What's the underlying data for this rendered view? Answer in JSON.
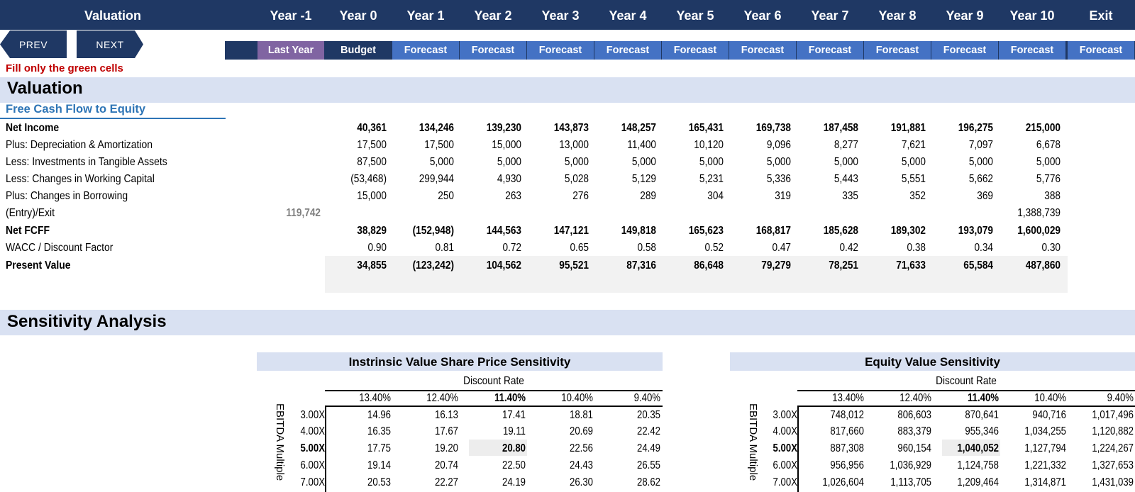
{
  "header": {
    "title": "Valuation",
    "years": [
      "Year -1",
      "Year 0",
      "Year 1",
      "Year 2",
      "Year 3",
      "Year 4",
      "Year 5",
      "Year 6",
      "Year 7",
      "Year 8",
      "Year 9",
      "Year 10",
      "Exit"
    ],
    "types": [
      "Last Year",
      "Budget",
      "Forecast",
      "Forecast",
      "Forecast",
      "Forecast",
      "Forecast",
      "Forecast",
      "Forecast",
      "Forecast",
      "Forecast",
      "Forecast",
      "Forecast"
    ]
  },
  "nav": {
    "prev": "PREV",
    "next": "NEXT"
  },
  "note": "Fill only the green cells",
  "valuation": {
    "section_title": "Valuation",
    "subsection": "Free Cash Flow to Equity",
    "rows": [
      {
        "label": "Net Income",
        "bold": true,
        "values": [
          "",
          "40,361",
          "134,246",
          "139,230",
          "143,873",
          "148,257",
          "165,431",
          "169,738",
          "187,458",
          "191,881",
          "196,275",
          "215,000"
        ]
      },
      {
        "label": "Plus: Depreciation & Amortization",
        "bold": false,
        "values": [
          "",
          "17,500",
          "17,500",
          "15,000",
          "13,000",
          "11,400",
          "10,120",
          "9,096",
          "8,277",
          "7,621",
          "7,097",
          "6,678"
        ]
      },
      {
        "label": "Less: Investments in Tangible Assets",
        "bold": false,
        "values": [
          "",
          "87,500",
          "5,000",
          "5,000",
          "5,000",
          "5,000",
          "5,000",
          "5,000",
          "5,000",
          "5,000",
          "5,000",
          "5,000"
        ]
      },
      {
        "label": "Less: Changes in Working Capital",
        "bold": false,
        "values": [
          "",
          "(53,468)",
          "299,944",
          "4,930",
          "5,028",
          "5,129",
          "5,231",
          "5,336",
          "5,443",
          "5,551",
          "5,662",
          "5,776"
        ]
      },
      {
        "label": "Plus: Changes in Borrowing",
        "bold": false,
        "values": [
          "",
          "15,000",
          "250",
          "263",
          "276",
          "289",
          "304",
          "319",
          "335",
          "352",
          "369",
          "388"
        ]
      },
      {
        "label": "(Entry)/Exit",
        "bold": false,
        "values": [
          "119,742",
          "",
          "",
          "",
          "",
          "",
          "",
          "",
          "",
          "",
          "",
          "1,388,739"
        ]
      },
      {
        "label": "Net FCFF",
        "bold": true,
        "values": [
          "",
          "38,829",
          "(152,948)",
          "144,563",
          "147,121",
          "149,818",
          "165,623",
          "168,817",
          "185,628",
          "189,302",
          "193,079",
          "1,600,029"
        ]
      },
      {
        "label": "WACC / Discount Factor",
        "bold": false,
        "values": [
          "",
          "0.90",
          "0.81",
          "0.72",
          "0.65",
          "0.58",
          "0.52",
          "0.47",
          "0.42",
          "0.38",
          "0.34",
          "0.30"
        ]
      },
      {
        "label": "Present Value",
        "bold": true,
        "values": [
          "",
          "34,855",
          "(123,242)",
          "104,562",
          "95,521",
          "87,316",
          "86,648",
          "79,279",
          "78,251",
          "71,633",
          "65,584",
          "487,860"
        ]
      }
    ]
  },
  "sensitivity": {
    "section_title": "Sensitivity Analysis",
    "row_axis_label": "EBITDA Multiple",
    "col_axis_label": "Discount Rate",
    "rates": [
      "13.40%",
      "12.40%",
      "11.40%",
      "10.40%",
      "9.40%"
    ],
    "multiples": [
      "3.00X",
      "4.00X",
      "5.00X",
      "6.00X",
      "7.00X"
    ],
    "share_price": {
      "title": "Instrinsic Value Share Price Sensitivity",
      "values": [
        [
          "14.96",
          "16.13",
          "17.41",
          "18.81",
          "20.35"
        ],
        [
          "16.35",
          "17.67",
          "19.11",
          "20.69",
          "22.42"
        ],
        [
          "17.75",
          "19.20",
          "20.80",
          "22.56",
          "24.49"
        ],
        [
          "19.14",
          "20.74",
          "22.50",
          "24.43",
          "26.55"
        ],
        [
          "20.53",
          "22.27",
          "24.19",
          "26.30",
          "28.62"
        ]
      ]
    },
    "equity_value": {
      "title": "Equity Value Sensitivity",
      "values": [
        [
          "748,012",
          "806,603",
          "870,641",
          "940,716",
          "1,017,496"
        ],
        [
          "817,660",
          "883,379",
          "955,346",
          "1,034,255",
          "1,120,882"
        ],
        [
          "887,308",
          "960,154",
          "1,040,052",
          "1,127,794",
          "1,224,267"
        ],
        [
          "956,956",
          "1,036,929",
          "1,124,758",
          "1,221,332",
          "1,327,653"
        ],
        [
          "1,026,604",
          "1,113,705",
          "1,209,464",
          "1,314,871",
          "1,431,039"
        ]
      ]
    }
  },
  "colors": {
    "navy": "#1f3864",
    "last_year": "#8064a2",
    "forecast": "#4472c4",
    "band": "#d9e1f2",
    "alert": "#c00000",
    "link_blue": "#2e75b6"
  }
}
